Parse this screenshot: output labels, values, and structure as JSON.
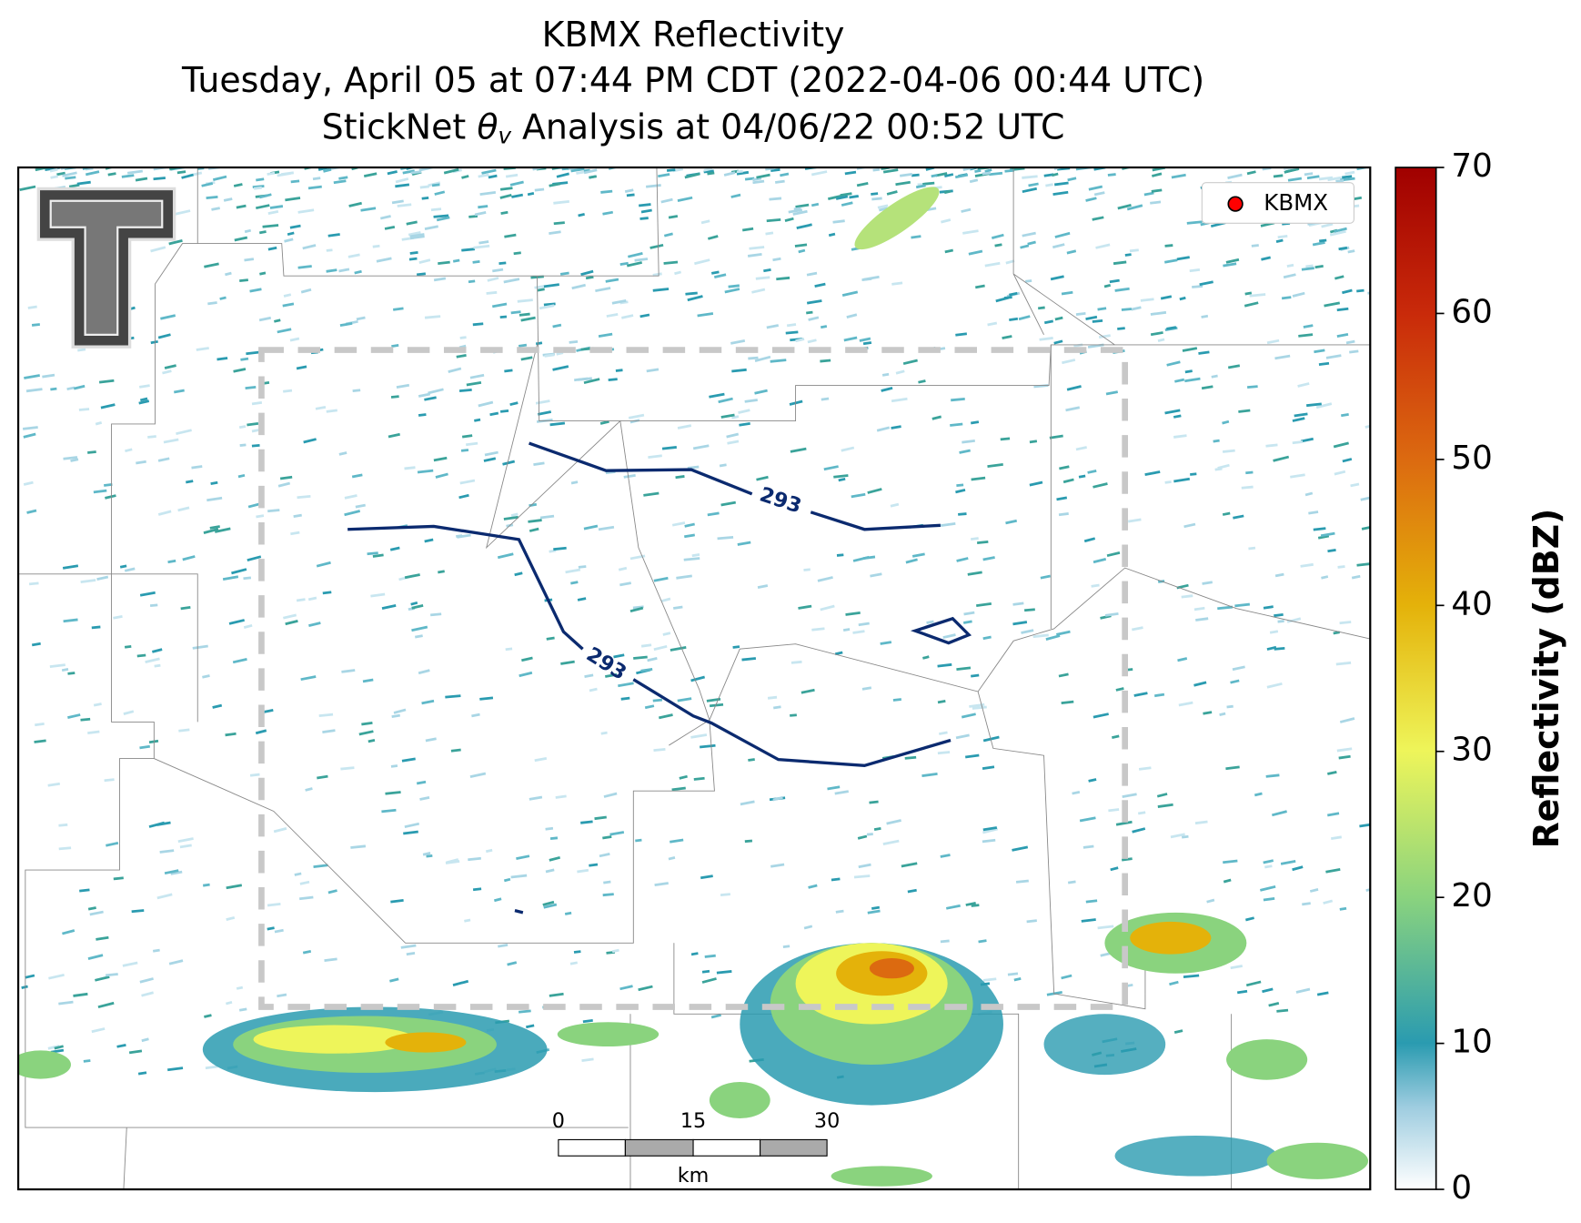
{
  "title": {
    "line1": "KBMX Reflectivity",
    "line2": "Tuesday, April 05 at 07:44 PM CDT (2022-04-06 00:44 UTC)",
    "line3_prefix": "StickNet ",
    "line3_symbol": "θ",
    "line3_subscript": "v",
    "line3_suffix": " Analysis at 04/06/22 00:52 UTC"
  },
  "legend": {
    "label": "KBMX",
    "color": "#ff0000"
  },
  "contours": [
    {
      "label": "293"
    },
    {
      "label": "293"
    }
  ],
  "scale_bar": {
    "labels": [
      "0",
      "15",
      "30"
    ],
    "unit": "km"
  },
  "colorbar": {
    "label": "Reflectivity (dBZ)",
    "lim": [
      0,
      70
    ],
    "ticks": [
      0,
      10,
      20,
      30,
      40,
      50,
      60,
      70
    ]
  }
}
